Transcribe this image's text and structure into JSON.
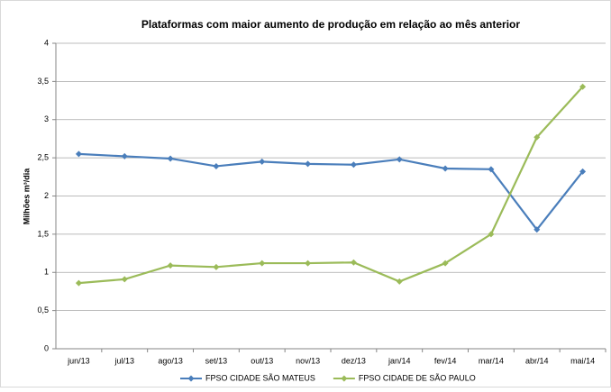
{
  "chart_data": {
    "type": "line",
    "title": "Plataformas com maior aumento de produção em relação ao mês anterior",
    "y_label": "Milhões m³/dia",
    "categories": [
      "jun/13",
      "jul/13",
      "ago/13",
      "set/13",
      "out/13",
      "nov/13",
      "dez/13",
      "jan/14",
      "fev/14",
      "mar/14",
      "abr/14",
      "mai/14"
    ],
    "series": [
      {
        "name": "FPSO CIDADE SÃO MATEUS",
        "color": "#4a7ebb",
        "values": [
          2.55,
          2.52,
          2.49,
          2.39,
          2.45,
          2.42,
          2.41,
          2.48,
          2.36,
          2.35,
          1.56,
          2.32
        ]
      },
      {
        "name": "FPSO CIDADE DE SÃO PAULO",
        "color": "#9bbb59",
        "values": [
          0.86,
          0.91,
          1.09,
          1.07,
          1.12,
          1.12,
          1.13,
          0.88,
          1.12,
          1.5,
          2.77,
          3.43
        ]
      }
    ],
    "ylim": [
      0,
      4
    ],
    "yticks": [
      0,
      {
        "value": 0.5,
        "label": "0,5"
      },
      1,
      {
        "value": 1.5,
        "label": "1,5"
      },
      2,
      {
        "value": 2.5,
        "label": "2,5"
      },
      3,
      {
        "value": 3.5,
        "label": "3,5"
      },
      4
    ],
    "grid": true,
    "legend": "bottom"
  }
}
